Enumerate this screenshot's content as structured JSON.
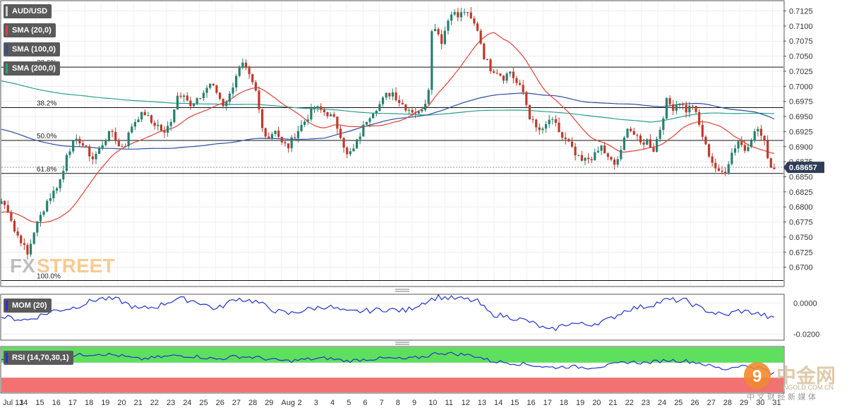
{
  "legend": {
    "symbol": "AUD/USD",
    "sma20": "SMA (20,0)",
    "sma100": "SMA (100,0)",
    "sma200": "SMA (200,0)",
    "mom": "MOM (20)",
    "rsi": "RSI (14,70,30,1)"
  },
  "current_price": "0.68657",
  "watermark": {
    "fx": "FX",
    "street": "STREET",
    "cn_brand": "中金网",
    "cn_sub": "中 文 财 经 新 媒 体",
    "cn_url": "ENGOLD.COM.CN"
  },
  "colors": {
    "up": "#26806e",
    "down": "#c0392b",
    "sma20": "#e0413a",
    "sma100": "#2a4f9e",
    "sma200": "#26a08a",
    "mom": "#2233cc",
    "rsi_ob": "#5ee05e",
    "rsi_os": "#f27272",
    "price_tag": "#2e3e58"
  },
  "fib_levels": [
    {
      "label": "23.6%",
      "value": 0.70319
    },
    {
      "label": "38.2%",
      "value": 0.69647
    },
    {
      "label": "50.0%",
      "value": 0.69102
    },
    {
      "label": "61.8%",
      "value": 0.68555
    },
    {
      "label": "100.0%",
      "value": 0.6678
    }
  ],
  "chart_data": [
    {
      "type": "candlestick",
      "title": "AUD/USD",
      "ylim": [
        0.6668,
        0.7142
      ],
      "yticks": [
        "0.7125",
        "0.7100",
        "0.7075",
        "0.7050",
        "0.7025",
        "0.7000",
        "0.6975",
        "0.6950",
        "0.6925",
        "0.6900",
        "0.6875",
        "0.6850",
        "0.6825",
        "0.6800",
        "0.6775",
        "0.6750",
        "0.6725",
        "0.6700"
      ],
      "xlabels": [
        "Jul 13",
        "14",
        "15",
        "16",
        "17",
        "18",
        "19",
        "20",
        "21",
        "22",
        "23",
        "24",
        "25",
        "26",
        "27",
        "28",
        "29",
        "Aug",
        "2",
        "3",
        "4",
        "5",
        "6",
        "7",
        "8",
        "9",
        "10",
        "11",
        "12",
        "13",
        "14",
        "15",
        "16",
        "17",
        "18",
        "19",
        "20",
        "21",
        "22",
        "23",
        "24",
        "25",
        "26",
        "27",
        "28",
        "29",
        "30",
        "31"
      ],
      "sma": [
        {
          "name": "SMA (20,0)",
          "period": 20
        },
        {
          "name": "SMA (100,0)",
          "period": 100
        },
        {
          "name": "SMA (200,0)",
          "period": 200
        }
      ],
      "price_path": [
        [
          0,
          0.681
        ],
        [
          2,
          0.6795
        ],
        [
          3,
          0.678
        ],
        [
          4,
          0.676
        ],
        [
          6,
          0.6745
        ],
        [
          8,
          0.672
        ],
        [
          10,
          0.676
        ],
        [
          12,
          0.6785
        ],
        [
          14,
          0.681
        ],
        [
          16,
          0.6825
        ],
        [
          18,
          0.6845
        ],
        [
          19,
          0.686
        ],
        [
          20,
          0.689
        ],
        [
          22,
          0.6905
        ],
        [
          24,
          0.691
        ],
        [
          26,
          0.6895
        ],
        [
          28,
          0.688
        ],
        [
          30,
          0.6895
        ],
        [
          32,
          0.6915
        ],
        [
          34,
          0.6925
        ],
        [
          36,
          0.69
        ],
        [
          38,
          0.6905
        ],
        [
          40,
          0.6935
        ],
        [
          42,
          0.695
        ],
        [
          44,
          0.6955
        ],
        [
          46,
          0.694
        ],
        [
          48,
          0.6935
        ],
        [
          50,
          0.692
        ],
        [
          52,
          0.6945
        ],
        [
          54,
          0.6985
        ],
        [
          56,
          0.699
        ],
        [
          58,
          0.6965
        ],
        [
          60,
          0.6975
        ],
        [
          62,
          0.699
        ],
        [
          64,
          0.7005
        ],
        [
          66,
          0.699
        ],
        [
          68,
          0.697
        ],
        [
          70,
          0.6985
        ],
        [
          72,
          0.702
        ],
        [
          74,
          0.7035
        ],
        [
          76,
          0.7015
        ],
        [
          78,
          0.699
        ],
        [
          80,
          0.693
        ],
        [
          82,
          0.6915
        ],
        [
          84,
          0.693
        ],
        [
          86,
          0.6905
        ],
        [
          88,
          0.69
        ],
        [
          90,
          0.692
        ],
        [
          92,
          0.6935
        ],
        [
          94,
          0.695
        ],
        [
          96,
          0.6965
        ],
        [
          98,
          0.696
        ],
        [
          100,
          0.6955
        ],
        [
          102,
          0.6945
        ],
        [
          104,
          0.692
        ],
        [
          106,
          0.6885
        ],
        [
          108,
          0.6895
        ],
        [
          110,
          0.692
        ],
        [
          112,
          0.6945
        ],
        [
          114,
          0.696
        ],
        [
          116,
          0.697
        ],
        [
          118,
          0.6985
        ],
        [
          120,
          0.699
        ],
        [
          122,
          0.6975
        ],
        [
          124,
          0.6965
        ],
        [
          126,
          0.696
        ],
        [
          128,
          0.6955
        ],
        [
          130,
          0.6975
        ],
        [
          131,
          0.7
        ],
        [
          132,
          0.709
        ],
        [
          133,
          0.71
        ],
        [
          135,
          0.7075
        ],
        [
          137,
          0.711
        ],
        [
          138,
          0.7125
        ],
        [
          140,
          0.7115
        ],
        [
          142,
          0.7125
        ],
        [
          144,
          0.711
        ],
        [
          146,
          0.7095
        ],
        [
          148,
          0.705
        ],
        [
          150,
          0.703
        ],
        [
          152,
          0.7025
        ],
        [
          154,
          0.7015
        ],
        [
          156,
          0.7025
        ],
        [
          158,
          0.7005
        ],
        [
          160,
          0.699
        ],
        [
          162,
          0.695
        ],
        [
          164,
          0.693
        ],
        [
          166,
          0.6925
        ],
        [
          168,
          0.6945
        ],
        [
          170,
          0.6935
        ],
        [
          172,
          0.6915
        ],
        [
          174,
          0.6905
        ],
        [
          176,
          0.6885
        ],
        [
          178,
          0.6875
        ],
        [
          180,
          0.688
        ],
        [
          182,
          0.6885
        ],
        [
          184,
          0.69
        ],
        [
          186,
          0.688
        ],
        [
          188,
          0.687
        ],
        [
          190,
          0.689
        ],
        [
          192,
          0.6935
        ],
        [
          194,
          0.692
        ],
        [
          196,
          0.6905
        ],
        [
          198,
          0.691
        ],
        [
          200,
          0.6895
        ],
        [
          202,
          0.693
        ],
        [
          204,
          0.6975
        ],
        [
          206,
          0.6965
        ],
        [
          208,
          0.6975
        ],
        [
          210,
          0.696
        ],
        [
          212,
          0.697
        ],
        [
          214,
          0.6935
        ],
        [
          216,
          0.69
        ],
        [
          218,
          0.6875
        ],
        [
          220,
          0.6855
        ],
        [
          222,
          0.686
        ],
        [
          224,
          0.689
        ],
        [
          226,
          0.691
        ],
        [
          228,
          0.6895
        ],
        [
          230,
          0.6915
        ],
        [
          232,
          0.693
        ],
        [
          234,
          0.6905
        ],
        [
          236,
          0.6866
        ]
      ]
    },
    {
      "type": "line",
      "title": "MOM (20)",
      "ylim": [
        -0.0235,
        0.0052
      ],
      "yticks": [
        "0.0000",
        "-0.0200"
      ],
      "points": [
        [
          0,
          -0.009
        ],
        [
          8,
          -0.011
        ],
        [
          16,
          -0.005
        ],
        [
          22,
          -0.003
        ],
        [
          30,
          0.003
        ],
        [
          36,
          0.002
        ],
        [
          42,
          -0.004
        ],
        [
          48,
          -0.002
        ],
        [
          54,
          0.003
        ],
        [
          60,
          0.001
        ],
        [
          66,
          -0.004
        ],
        [
          72,
          0.003
        ],
        [
          78,
          0.001
        ],
        [
          84,
          -0.005
        ],
        [
          88,
          -0.007
        ],
        [
          94,
          -0.004
        ],
        [
          100,
          -0.002
        ],
        [
          106,
          -0.006
        ],
        [
          112,
          -0.005
        ],
        [
          118,
          -0.004
        ],
        [
          124,
          -0.005
        ],
        [
          130,
          0.001
        ],
        [
          134,
          0.004
        ],
        [
          138,
          0.003
        ],
        [
          142,
          0.0025
        ],
        [
          146,
          0.001
        ],
        [
          150,
          -0.007
        ],
        [
          156,
          -0.009
        ],
        [
          162,
          -0.012
        ],
        [
          168,
          -0.018
        ],
        [
          174,
          -0.013
        ],
        [
          180,
          -0.014
        ],
        [
          186,
          -0.011
        ],
        [
          192,
          -0.004
        ],
        [
          198,
          -0.002
        ],
        [
          204,
          0.002
        ],
        [
          210,
          0.0015
        ],
        [
          214,
          -0.003
        ],
        [
          218,
          -0.006
        ],
        [
          222,
          -0.008
        ],
        [
          226,
          -0.005
        ],
        [
          230,
          -0.006
        ],
        [
          234,
          -0.008
        ],
        [
          236,
          -0.01
        ]
      ]
    },
    {
      "type": "line",
      "title": "RSI (14,70,30,1)",
      "ylim": [
        24,
        73
      ],
      "overbought": 70,
      "oversold": 30,
      "points": [
        [
          0,
          60
        ],
        [
          8,
          58
        ],
        [
          16,
          62
        ],
        [
          22,
          64
        ],
        [
          30,
          66
        ],
        [
          36,
          64
        ],
        [
          42,
          60
        ],
        [
          48,
          62
        ],
        [
          54,
          64
        ],
        [
          60,
          63
        ],
        [
          66,
          60
        ],
        [
          72,
          63
        ],
        [
          78,
          62
        ],
        [
          84,
          59
        ],
        [
          88,
          58
        ],
        [
          94,
          60
        ],
        [
          100,
          61
        ],
        [
          106,
          58
        ],
        [
          112,
          60
        ],
        [
          118,
          61
        ],
        [
          124,
          60
        ],
        [
          130,
          63
        ],
        [
          134,
          67
        ],
        [
          138,
          66
        ],
        [
          142,
          65
        ],
        [
          146,
          63
        ],
        [
          150,
          58
        ],
        [
          156,
          56
        ],
        [
          162,
          54
        ],
        [
          168,
          51
        ],
        [
          174,
          52
        ],
        [
          180,
          51
        ],
        [
          186,
          53
        ],
        [
          192,
          57
        ],
        [
          198,
          56
        ],
        [
          204,
          59
        ],
        [
          210,
          58
        ],
        [
          214,
          56
        ],
        [
          218,
          52
        ],
        [
          222,
          49
        ],
        [
          226,
          53
        ],
        [
          230,
          52
        ],
        [
          234,
          49
        ],
        [
          236,
          44
        ]
      ]
    }
  ]
}
